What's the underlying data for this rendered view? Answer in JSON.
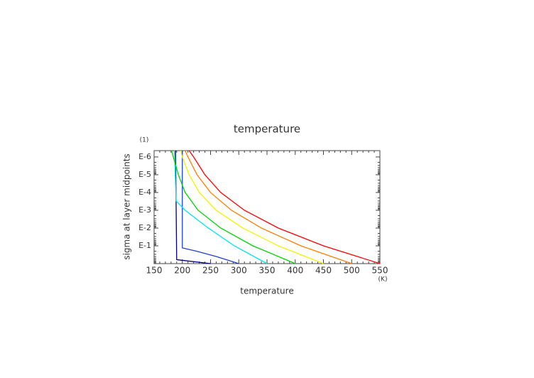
{
  "chart_data": {
    "type": "line",
    "title": "temperature",
    "x_label": "temperature",
    "y_label": "sigma at layer midpoints",
    "x_unit": "(K)",
    "y_unit": "(1)",
    "xlim": [
      150,
      550
    ],
    "xticks": [
      150,
      200,
      250,
      300,
      350,
      400,
      450,
      500,
      550
    ],
    "ylim": [
      1,
      4.4e-07
    ],
    "y_log": true,
    "yticks": [
      {
        "value": 0.1,
        "label": "E-1"
      },
      {
        "value": 0.01,
        "label": "E-2"
      },
      {
        "value": 0.001,
        "label": "E-3"
      },
      {
        "value": 0.0001,
        "label": "E-4"
      },
      {
        "value": 1e-05,
        "label": "E-5"
      },
      {
        "value": 1e-06,
        "label": "E-6"
      }
    ],
    "series": [
      {
        "color": "#00007f",
        "temperature": [
          250,
          190,
          188
        ],
        "sigma": [
          1,
          0.6,
          4.4e-07
        ]
      },
      {
        "color": "#1f3fcf",
        "temperature": [
          300,
          260,
          225,
          200,
          200
        ],
        "sigma": [
          1,
          0.4,
          0.2,
          0.13,
          4.4e-07
        ]
      },
      {
        "color": "#00e5f0",
        "temperature": [
          350,
          292,
          246,
          205,
          189,
          186
        ],
        "sigma": [
          1,
          0.1,
          0.01,
          0.001,
          0.0003,
          4.4e-07
        ]
      },
      {
        "color": "#00d400",
        "temperature": [
          400,
          325,
          268,
          228,
          205,
          193,
          184,
          181
        ],
        "sigma": [
          1,
          0.1,
          0.01,
          0.001,
          0.0001,
          1e-05,
          1e-06,
          4.4e-07
        ]
      },
      {
        "color": "#f2f200",
        "temperature": [
          450,
          370,
          307,
          260,
          230,
          212,
          200,
          197
        ],
        "sigma": [
          1,
          0.1,
          0.01,
          0.001,
          0.0001,
          1e-05,
          1e-06,
          4.4e-07
        ]
      },
      {
        "color": "#ff7f00",
        "temperature": [
          500,
          410,
          340,
          287,
          250,
          226,
          210,
          205
        ],
        "sigma": [
          1,
          0.1,
          0.01,
          0.001,
          0.0001,
          1e-05,
          1e-06,
          4.4e-07
        ]
      },
      {
        "color": "#ff0000",
        "temperature": [
          550,
          450,
          370,
          310,
          268,
          240,
          220,
          212
        ],
        "sigma": [
          1,
          0.1,
          0.01,
          0.001,
          0.0001,
          1e-05,
          1e-06,
          4.4e-07
        ]
      }
    ]
  }
}
